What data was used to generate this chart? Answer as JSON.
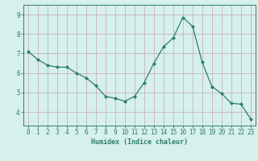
{
  "x": [
    0,
    1,
    2,
    3,
    4,
    5,
    6,
    7,
    8,
    9,
    10,
    11,
    12,
    13,
    14,
    15,
    16,
    17,
    18,
    19,
    20,
    21,
    22,
    23
  ],
  "y": [
    7.1,
    6.7,
    6.4,
    6.3,
    6.3,
    6.0,
    5.75,
    5.35,
    4.8,
    4.7,
    4.55,
    4.8,
    5.5,
    6.5,
    7.35,
    7.8,
    8.85,
    8.4,
    6.55,
    5.3,
    4.95,
    4.45,
    4.4,
    3.65
  ],
  "line_color": "#2e7d6e",
  "marker": "D",
  "markersize": 2.0,
  "linewidth": 0.9,
  "bg_color": "#d6f0eb",
  "grid_color": "#c4a8b0",
  "axis_color": "#2e7d6e",
  "xlabel": "Humidex (Indice chaleur)",
  "xlabel_fontsize": 6,
  "tick_fontsize": 5.5,
  "yticks": [
    4,
    5,
    6,
    7,
    8,
    9
  ],
  "ylim": [
    3.3,
    9.5
  ],
  "xlim": [
    -0.5,
    23.5
  ],
  "title": ""
}
